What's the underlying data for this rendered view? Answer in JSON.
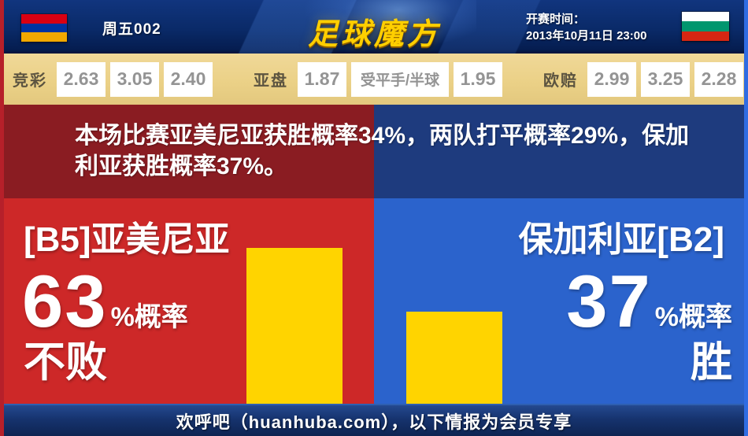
{
  "header": {
    "match_label": "周五002",
    "logo_text": "足球魔方",
    "kickoff_label": "开赛时间：",
    "kickoff_time": "2013年10月11日 23:00",
    "home_flag": "armenia-flag",
    "away_flag": "bulgaria-flag"
  },
  "odds_bar": {
    "groups": [
      {
        "label": "竞彩",
        "values": [
          "2.63",
          "3.05",
          "2.40"
        ]
      },
      {
        "label": "亚盘",
        "values": [
          "1.87",
          "受平手/半球",
          "1.95"
        ]
      },
      {
        "label": "欧赔",
        "values": [
          "2.99",
          "3.25",
          "2.28"
        ]
      }
    ]
  },
  "summary": {
    "text": "本场比赛亚美尼亚获胜概率34%，两队打平概率29%，保加利亚获胜概率37%。",
    "home_win_probability": "34%",
    "draw_probability": "29%",
    "away_win_probability": "37%"
  },
  "prediction": {
    "home": {
      "team": "[B5]亚美尼亚",
      "percent": "63",
      "suffix": "%概率",
      "outcome": "不败"
    },
    "away": {
      "team": "保加利亚[B2]",
      "percent": "37",
      "suffix": "%概率",
      "outcome": "胜"
    }
  },
  "footer": {
    "text": "欢呼吧（huanhuba.com），以下情报为会员专享"
  },
  "chart_data": {
    "type": "bar",
    "categories": [
      "亚美尼亚",
      "保加利亚"
    ],
    "values": [
      63,
      37
    ],
    "unit": "%",
    "bar_labels": [
      "不败",
      "胜"
    ],
    "bar_color": "#ffd400",
    "ylim": [
      0,
      100
    ],
    "grid": false,
    "legend": false
  },
  "colors": {
    "home_red": "#cd2828",
    "away_blue": "#2b63cc",
    "banner_dark_red": "#8a1c22",
    "banner_dark_blue": "#1e3b7e",
    "bar_yellow": "#ffd400",
    "odds_bg_tan": "#ebd187",
    "topbar_navy": "#0a2a68",
    "footer_navy": "#16336e",
    "logo_gold": "#ffcf00"
  }
}
